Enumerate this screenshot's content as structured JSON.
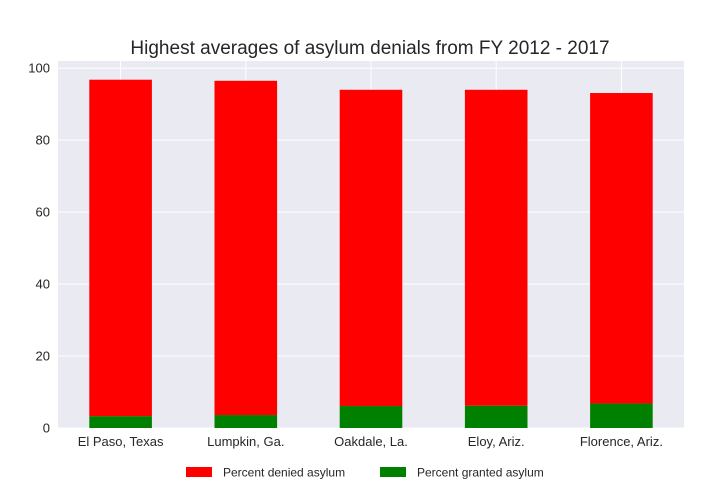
{
  "chart_data": {
    "type": "bar",
    "stacked": true,
    "title": "Highest averages of asylum denials from FY 2012 - 2017",
    "xlabel": "",
    "ylabel": "",
    "categories": [
      "El Paso, Texas",
      "Lumpkin, Ga.",
      "Oakdale, La.",
      "Eloy, Ariz.",
      "Florence, Ariz."
    ],
    "series": [
      {
        "name": "Percent granted asylum",
        "color": "#008000",
        "values": [
          3.3,
          3.6,
          6.1,
          6.2,
          6.8
        ]
      },
      {
        "name": "Percent denied asylum",
        "color": "#ff0000",
        "values": [
          93.5,
          92.9,
          87.9,
          87.8,
          86.3
        ]
      }
    ],
    "legend_order": [
      "Percent denied asylum",
      "Percent granted asylum"
    ],
    "ylim": [
      0,
      102
    ],
    "yticks": [
      0,
      20,
      40,
      60,
      80,
      100
    ],
    "grid": true,
    "legend_position": "bottom-center",
    "background_color": "#eaeaf2",
    "grid_color": "#ffffff"
  }
}
